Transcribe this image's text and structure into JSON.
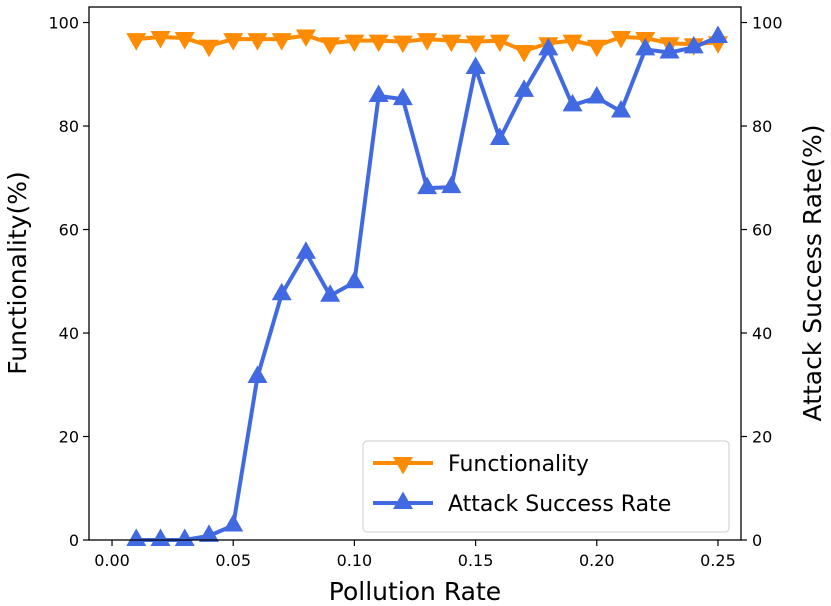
{
  "colors": {
    "functionality": "#ff8c00",
    "attack": "#4169e1",
    "axes": "#000000"
  },
  "chart_data": {
    "type": "line",
    "title": "",
    "xlabel": "Pollution Rate",
    "ylabel_left": "Functionality(%)",
    "ylabel_right": "Attack Success Rate(%)",
    "xlim": [
      -0.0095,
      0.2595
    ],
    "ylim": [
      0,
      103
    ],
    "x_ticks": [
      0.0,
      0.05,
      0.1,
      0.15,
      0.2,
      0.25
    ],
    "x_tick_labels": [
      "0.00",
      "0.05",
      "0.10",
      "0.15",
      "0.20",
      "0.25"
    ],
    "y_ticks": [
      0,
      20,
      40,
      60,
      80,
      100
    ],
    "y_tick_labels": [
      "0",
      "20",
      "40",
      "60",
      "80",
      "100"
    ],
    "legend_position": "bottom-right",
    "x": [
      0.01,
      0.02,
      0.03,
      0.04,
      0.05,
      0.06,
      0.07,
      0.08,
      0.09,
      0.1,
      0.11,
      0.12,
      0.13,
      0.14,
      0.15,
      0.16,
      0.17,
      0.18,
      0.19,
      0.2,
      0.21,
      0.22,
      0.23,
      0.24,
      0.25
    ],
    "series": [
      {
        "name": "Functionality",
        "marker": "triangle-down",
        "values": [
          96.8,
          97.2,
          97.0,
          95.5,
          96.8,
          96.8,
          96.8,
          97.5,
          96.0,
          96.5,
          96.5,
          96.3,
          96.8,
          96.5,
          96.3,
          96.5,
          94.5,
          96.0,
          96.5,
          95.5,
          97.2,
          97.0,
          96.0,
          95.8,
          96.2
        ]
      },
      {
        "name": "Attack Success Rate",
        "marker": "triangle-up",
        "values": [
          0.0,
          0.0,
          0.0,
          0.8,
          2.8,
          31.5,
          47.5,
          55.5,
          47.2,
          49.8,
          85.8,
          85.2,
          68.0,
          68.2,
          91.2,
          77.5,
          86.8,
          94.8,
          84.0,
          85.5,
          82.8,
          94.8,
          94.2,
          95.2,
          97.2
        ]
      }
    ]
  }
}
